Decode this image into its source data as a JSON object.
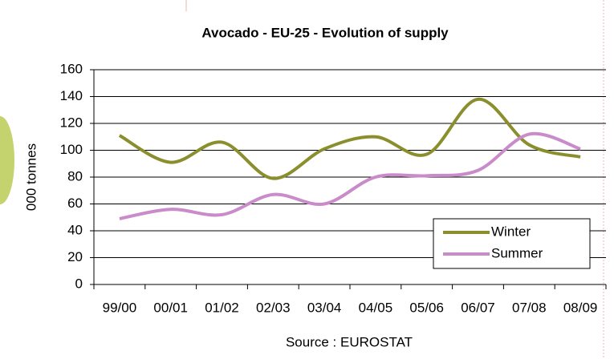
{
  "chart_data": {
    "type": "line",
    "title": "Avocado - EU-25 - Evolution of supply",
    "y_label": "000 tonnes",
    "source": "Source : EUROSTAT",
    "categories": [
      "99/00",
      "00/01",
      "01/02",
      "02/03",
      "03/04",
      "04/05",
      "05/06",
      "06/07",
      "07/08",
      "08/09"
    ],
    "series": [
      {
        "name": "Winter",
        "color": "#8b8e2c",
        "values": [
          111,
          91,
          106,
          79,
          101,
          110,
          97,
          138,
          104,
          95
        ]
      },
      {
        "name": "Summer",
        "color": "#c98bc9",
        "values": [
          49,
          56,
          52,
          67,
          60,
          80,
          81,
          85,
          112,
          101
        ]
      }
    ],
    "ylim": [
      0,
      160
    ],
    "yticks": [
      0,
      20,
      40,
      60,
      80,
      100,
      120,
      140,
      160
    ],
    "grid": true,
    "legend": "lower-right",
    "smooth": true
  }
}
